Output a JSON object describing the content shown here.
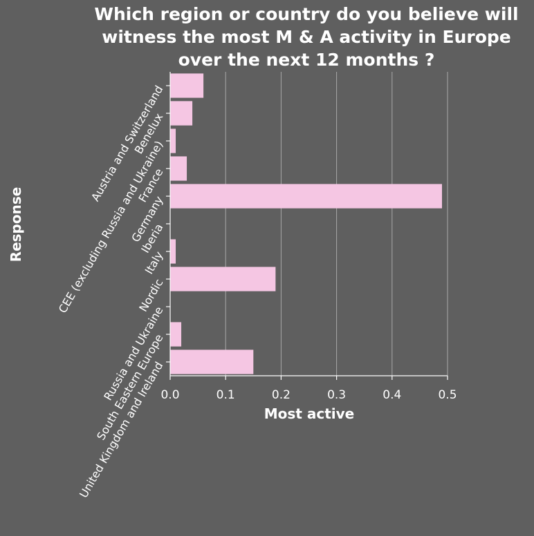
{
  "chart_data": {
    "type": "bar",
    "orientation": "horizontal",
    "title": "Which region or country do you believe will witness the most M & A activity in Europe over the next 12 months ?",
    "xlabel": "Most active",
    "ylabel": "Response",
    "xlim": [
      0,
      0.5
    ],
    "x_ticks": [
      "0.0",
      "0.1",
      "0.2",
      "0.3",
      "0.4",
      "0.5"
    ],
    "x_tick_values": [
      0.0,
      0.1,
      0.2,
      0.3,
      0.4,
      0.5
    ],
    "grid": "vertical",
    "categories": [
      "Austria and Switzerland",
      "Benelux",
      "CEE (excluding Russia and Ukraine)",
      "France",
      "Germany",
      "Iberia",
      "Italy",
      "Nordic",
      "Russia and Ukraine",
      "South Eastern Europe",
      "United Kingdom and Ireland"
    ],
    "values": [
      0.06,
      0.04,
      0.01,
      0.03,
      0.49,
      0.0,
      0.01,
      0.19,
      0.0,
      0.02,
      0.15
    ],
    "colors": {
      "background": "#5f5f5f",
      "bar": "#f5c6e3",
      "text": "#ffffff",
      "grid": "#a9a9a9"
    }
  }
}
